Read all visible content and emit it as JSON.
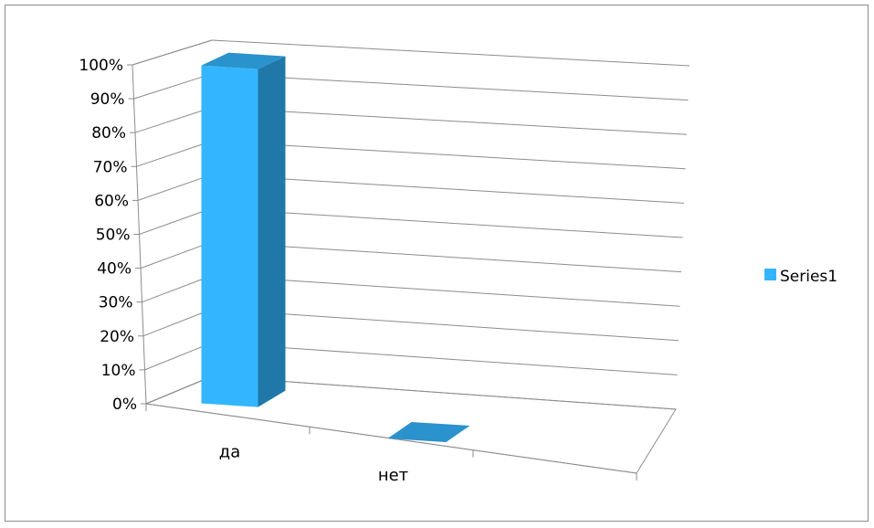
{
  "chart_data": {
    "type": "bar",
    "categories": [
      "да",
      "нет"
    ],
    "series": [
      {
        "name": "Series1",
        "values": [
          100,
          0
        ],
        "color": "#33b6ff",
        "side_color": "#1f78a8",
        "top_color": "#2a92cc"
      }
    ],
    "y_ticks": [
      "0%",
      "10%",
      "20%",
      "30%",
      "40%",
      "50%",
      "60%",
      "70%",
      "80%",
      "90%",
      "100%"
    ],
    "ylim": [
      0,
      100
    ],
    "grid": true,
    "legend_position": "right",
    "title": "",
    "xlabel": "",
    "ylabel": ""
  }
}
